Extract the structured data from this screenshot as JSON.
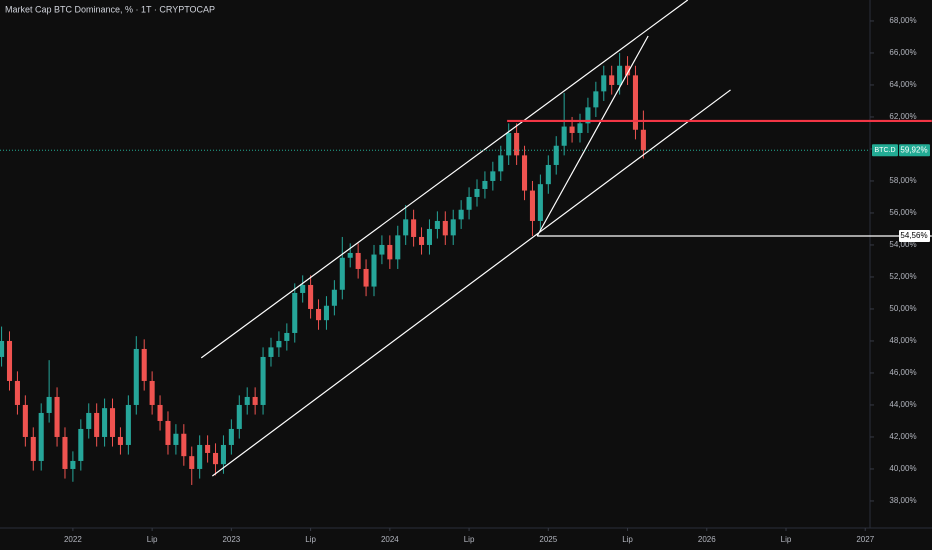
{
  "chart_data": {
    "type": "candlestick",
    "title": "Market Cap BTC Dominance, % · 1T · CRYPTOCAP",
    "up_color": "#26a69a",
    "down_color": "#ef5350",
    "x": [
      2021.55,
      2021.6,
      2021.65,
      2021.7,
      2021.75,
      2021.8,
      2021.85,
      2021.9,
      2021.95,
      2022.0,
      2022.05,
      2022.1,
      2022.15,
      2022.2,
      2022.25,
      2022.3,
      2022.35,
      2022.4,
      2022.45,
      2022.5,
      2022.55,
      2022.6,
      2022.65,
      2022.7,
      2022.75,
      2022.8,
      2022.85,
      2022.9,
      2022.95,
      2023.0,
      2023.05,
      2023.1,
      2023.15,
      2023.2,
      2023.25,
      2023.3,
      2023.35,
      2023.4,
      2023.45,
      2023.5,
      2023.55,
      2023.6,
      2023.65,
      2023.7,
      2023.75,
      2023.8,
      2023.85,
      2023.9,
      2023.95,
      2024.0,
      2024.05,
      2024.1,
      2024.15,
      2024.2,
      2024.25,
      2024.3,
      2024.35,
      2024.4,
      2024.45,
      2024.5,
      2024.55,
      2024.6,
      2024.65,
      2024.7,
      2024.75,
      2024.8,
      2024.85,
      2024.9,
      2024.95,
      2025.0,
      2025.05,
      2025.1,
      2025.15,
      2025.2,
      2025.25,
      2025.3,
      2025.35,
      2025.4,
      2025.45,
      2025.5,
      2025.55,
      2025.6
    ],
    "open": [
      47,
      48,
      45.5,
      44,
      42,
      40.5,
      43.5,
      44.5,
      42,
      40,
      40.5,
      42.5,
      43.5,
      42,
      43.8,
      42,
      41.5,
      44,
      47.5,
      45.5,
      44,
      43,
      41.5,
      42.2,
      40.8,
      40,
      41.5,
      41,
      40.3,
      41.5,
      42.5,
      44,
      44.5,
      44,
      47,
      47.6,
      48,
      48.5,
      51,
      51.5,
      50,
      49.3,
      50.2,
      51.2,
      53.2,
      53.5,
      52.5,
      51.4,
      53.4,
      54,
      53.1,
      54.6,
      55.6,
      54.5,
      54,
      55,
      55.5,
      54.6,
      55.6,
      56.2,
      57,
      57.5,
      58,
      58.6,
      59.6,
      61,
      59.6,
      57.4,
      55.5,
      57.8,
      59,
      60.2,
      61.4,
      61,
      61.6,
      62.6,
      63.6,
      64.6,
      64,
      65.2,
      64.6,
      61.2
    ],
    "high": [
      48.9,
      48.6,
      46.1,
      44.6,
      42.6,
      44.1,
      46.8,
      45.1,
      42.6,
      41.1,
      43.1,
      44.1,
      44.1,
      44.4,
      44.4,
      42.6,
      44.6,
      48.3,
      48.1,
      46.1,
      44.6,
      43.6,
      42.8,
      42.8,
      41.4,
      42.1,
      42.1,
      41.6,
      42.1,
      43.1,
      44.6,
      45.1,
      45.1,
      47.6,
      48.2,
      48.6,
      49.1,
      51.6,
      52.1,
      52.1,
      50.6,
      50.8,
      51.8,
      54.5,
      54.1,
      54.1,
      53.1,
      54,
      54.6,
      54.6,
      55.2,
      56.5,
      56.2,
      55.1,
      55.6,
      56.1,
      56.1,
      56.2,
      56.8,
      57.6,
      58.1,
      58.6,
      59.2,
      60.2,
      61.6,
      61.6,
      60.2,
      58,
      58.4,
      59.6,
      60.8,
      63.5,
      62,
      62.2,
      63.2,
      64.2,
      65.2,
      65.2,
      66,
      65.8,
      65.2,
      62.4
    ],
    "low": [
      46.4,
      44.9,
      43.4,
      41.4,
      39.9,
      39.9,
      42.9,
      41.4,
      39.4,
      39.2,
      39.9,
      41.9,
      41.4,
      41.4,
      41.4,
      40.9,
      40.9,
      43.4,
      44.9,
      43.4,
      42.4,
      40.9,
      40.9,
      40.2,
      39,
      39.4,
      40.4,
      39.6,
      39.7,
      40.9,
      41.9,
      43.4,
      43.4,
      43.4,
      46.4,
      47,
      47.4,
      47.9,
      50.4,
      49.4,
      48.7,
      48.7,
      49.6,
      50.6,
      52.6,
      51.9,
      50.8,
      50.8,
      52.8,
      52.5,
      52.5,
      54,
      53.9,
      53.4,
      53.4,
      54.4,
      54,
      54,
      55,
      55.6,
      56.4,
      56.9,
      57.4,
      58,
      59,
      59,
      56.8,
      54.56,
      54.9,
      57.2,
      58.4,
      59.6,
      60.4,
      60.4,
      61,
      62,
      63,
      63.4,
      63.4,
      64,
      60.6,
      59.4
    ],
    "close": [
      48,
      45.5,
      44,
      42,
      40.5,
      43.5,
      44.5,
      42,
      40,
      40.5,
      42.5,
      43.5,
      42,
      43.8,
      42,
      41.5,
      44,
      47.5,
      45.5,
      44,
      43,
      41.5,
      42.2,
      40.8,
      40,
      41.5,
      41,
      40.3,
      41.5,
      42.5,
      44,
      44.5,
      44,
      47,
      47.6,
      48,
      48.5,
      51,
      51.5,
      50,
      49.3,
      50.2,
      51.2,
      53.2,
      53.5,
      52.5,
      51.4,
      53.4,
      54,
      53.1,
      54.6,
      55.6,
      54.5,
      54,
      55,
      55.5,
      54.6,
      55.6,
      56.2,
      57,
      57.5,
      58,
      58.6,
      59.6,
      61,
      59.6,
      57.4,
      55.5,
      57.8,
      59,
      60.2,
      61.4,
      61,
      61.6,
      62.6,
      63.6,
      64.6,
      64,
      65.2,
      64.6,
      61.2,
      59.92
    ],
    "xlim": [
      2021.54,
      2027.03
    ],
    "ylim": [
      36.31,
      69.31
    ],
    "xticks": [
      2022,
      {
        "value": 2022.5,
        "label": "Lip"
      },
      2023,
      {
        "value": 2023.5,
        "label": "Lip"
      },
      2024,
      {
        "value": 2024.5,
        "label": "Lip"
      },
      2025,
      {
        "value": 2025.5,
        "label": "Lip"
      },
      2026,
      {
        "value": 2026.5,
        "label": "Lip"
      },
      2027
    ],
    "yticks": [
      {
        "value": 38,
        "label": "38,00%"
      },
      {
        "value": 40,
        "label": "40,00%"
      },
      {
        "value": 42,
        "label": "42,00%"
      },
      {
        "value": 44,
        "label": "44,00%"
      },
      {
        "value": 46,
        "label": "46,00%"
      },
      {
        "value": 48,
        "label": "48,00%"
      },
      {
        "value": 50,
        "label": "50,00%"
      },
      {
        "value": 52,
        "label": "52,00%"
      },
      {
        "value": 54,
        "label": "54,00%"
      },
      {
        "value": 56,
        "label": "56,00%"
      },
      {
        "value": 58,
        "label": "58,00%"
      },
      {
        "value": 60,
        "label": "60,00%"
      },
      {
        "value": 62,
        "label": "62,00%"
      },
      {
        "value": 64,
        "label": "64,00%"
      },
      {
        "value": 66,
        "label": "66,00%"
      },
      {
        "value": 68,
        "label": "68,00%"
      }
    ],
    "last_price": {
      "name": "BTC.D",
      "value": 59.92,
      "label": "59,92%",
      "color": "#22ab94"
    },
    "level_label": {
      "value": 54.56,
      "label": "54,56%"
    },
    "drawings": [
      {
        "color": "#ffffff",
        "x": [
          2022.81,
          2025.88
        ],
        "y": [
          46.94,
          69.31
        ]
      },
      {
        "color": "#ffffff",
        "x": [
          2022.88,
          2026.15
        ],
        "y": [
          39.56,
          63.69
        ]
      },
      {
        "color": "#ffffff",
        "x": [
          2024.93,
          2025.63
        ],
        "y": [
          54.56,
          67.06
        ]
      },
      {
        "color": "#ffffff",
        "x": [
          2024.93,
          2027.42
        ],
        "y": [
          54.56,
          54.56
        ]
      },
      {
        "color": "#f23645",
        "x": [
          2024.74,
          2027.42
        ],
        "y": [
          61.75,
          61.75
        ]
      }
    ]
  }
}
